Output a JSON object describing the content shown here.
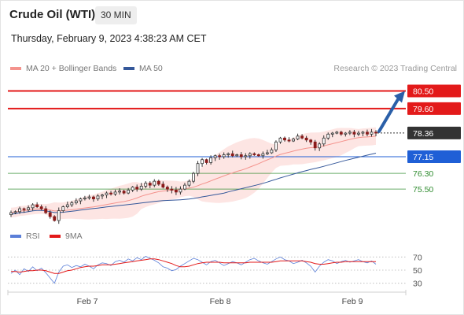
{
  "header": {
    "title": "Crude Oil (WTI)",
    "timeframe": "30 MIN",
    "datetime": "Thursday, February 9, 2023 4:38:23 AM CET"
  },
  "legend": {
    "ma20": {
      "label": "MA 20 + Bollinger Bands",
      "color": "#f4938d"
    },
    "ma50": {
      "label": "MA 50",
      "color": "#35589a"
    },
    "credit": "Research © 2023 Trading Central"
  },
  "rsi_legend": {
    "rsi": {
      "label": "RSI",
      "color": "#5b7fd8"
    },
    "ma9": {
      "label": "9MA",
      "color": "#e31a1a"
    }
  },
  "chart_data": [
    {
      "type": "candlestick",
      "ylim": [
        73.5,
        81.2
      ],
      "x_ticks": [
        "Feb 7",
        "Feb 8",
        "Feb 9"
      ],
      "price_close": [
        74.3,
        74.35,
        74.5,
        74.45,
        74.55,
        74.7,
        74.6,
        74.5,
        74.3,
        74.1,
        73.9,
        74.4,
        74.6,
        74.7,
        74.8,
        74.9,
        75.0,
        75.05,
        75.1,
        75.0,
        75.15,
        75.2,
        75.3,
        75.25,
        75.35,
        75.4,
        75.3,
        75.45,
        75.6,
        75.5,
        75.65,
        75.8,
        75.7,
        75.9,
        75.75,
        75.6,
        75.5,
        75.45,
        75.35,
        75.5,
        75.7,
        75.9,
        76.3,
        76.8,
        77.0,
        76.85,
        77.1,
        77.2,
        77.15,
        77.25,
        77.3,
        77.2,
        77.25,
        77.15,
        77.2,
        77.3,
        77.25,
        77.2,
        77.3,
        77.35,
        77.5,
        77.9,
        78.1,
        78.0,
        77.95,
        78.05,
        78.2,
        78.1,
        78.0,
        77.9,
        77.6,
        77.8,
        78.1,
        78.3,
        78.35,
        78.4,
        78.3,
        78.35,
        78.4,
        78.3,
        78.35,
        78.4,
        78.3,
        78.4,
        78.36
      ],
      "series": [
        {
          "name": "MA 20 + Bollinger Bands"
        },
        {
          "name": "MA 50"
        }
      ],
      "levels": [
        {
          "value": 80.5,
          "label": "80.50",
          "kind": "resistance",
          "color": "#e31a1a"
        },
        {
          "value": 79.6,
          "label": "79.60",
          "kind": "resistance",
          "color": "#e31a1a"
        },
        {
          "value": 78.36,
          "label": "78.36",
          "kind": "last",
          "color": "#333333"
        },
        {
          "value": 77.15,
          "label": "77.15",
          "kind": "pivot",
          "color": "#1f5fd6"
        },
        {
          "value": 76.3,
          "label": "76.30",
          "kind": "support",
          "color": "#2e8b2e"
        },
        {
          "value": 75.5,
          "label": "75.50",
          "kind": "support",
          "color": "#2e8b2e"
        }
      ],
      "arrow": {
        "from": 78.36,
        "to": 80.5,
        "color": "#2a5fa8"
      }
    },
    {
      "type": "line",
      "ylim": [
        20,
        80
      ],
      "y_ticks": [
        "70",
        "50",
        "30"
      ],
      "series": [
        {
          "name": "RSI",
          "color": "#5b7fd8",
          "values": [
            45,
            50,
            43,
            52,
            48,
            55,
            49,
            53,
            46,
            38,
            30,
            47,
            56,
            58,
            54,
            57,
            55,
            59,
            56,
            52,
            58,
            61,
            60,
            57,
            63,
            65,
            62,
            67,
            64,
            69,
            66,
            71,
            68,
            65,
            61,
            55,
            53,
            49,
            51,
            56,
            60,
            64,
            68,
            66,
            62,
            58,
            63,
            65,
            61,
            57,
            60,
            63,
            61,
            58,
            62,
            66,
            68,
            64,
            61,
            59,
            63,
            67,
            70,
            66,
            64,
            60,
            62,
            65,
            61,
            56,
            47,
            56,
            62,
            66,
            64,
            60,
            63,
            65,
            62,
            64,
            66,
            63,
            61,
            64,
            59
          ]
        },
        {
          "name": "9MA",
          "color": "#e31a1a",
          "values": [
            48,
            48,
            47,
            48,
            49,
            49,
            50,
            50,
            49,
            47,
            45,
            45,
            47,
            49,
            50,
            52,
            54,
            55,
            56,
            56,
            57,
            58,
            58,
            58,
            59,
            60,
            61,
            62,
            63,
            64,
            65,
            66,
            67,
            67,
            66,
            64,
            62,
            60,
            57,
            55,
            55,
            56,
            58,
            60,
            61,
            62,
            62,
            62,
            62,
            61,
            61,
            61,
            61,
            61,
            61,
            62,
            62,
            62,
            62,
            62,
            62,
            63,
            64,
            64,
            64,
            64,
            64,
            64,
            63,
            62,
            60,
            59,
            59,
            60,
            61,
            62,
            62,
            63,
            63,
            63,
            63,
            63,
            63,
            63,
            63
          ]
        }
      ]
    }
  ]
}
